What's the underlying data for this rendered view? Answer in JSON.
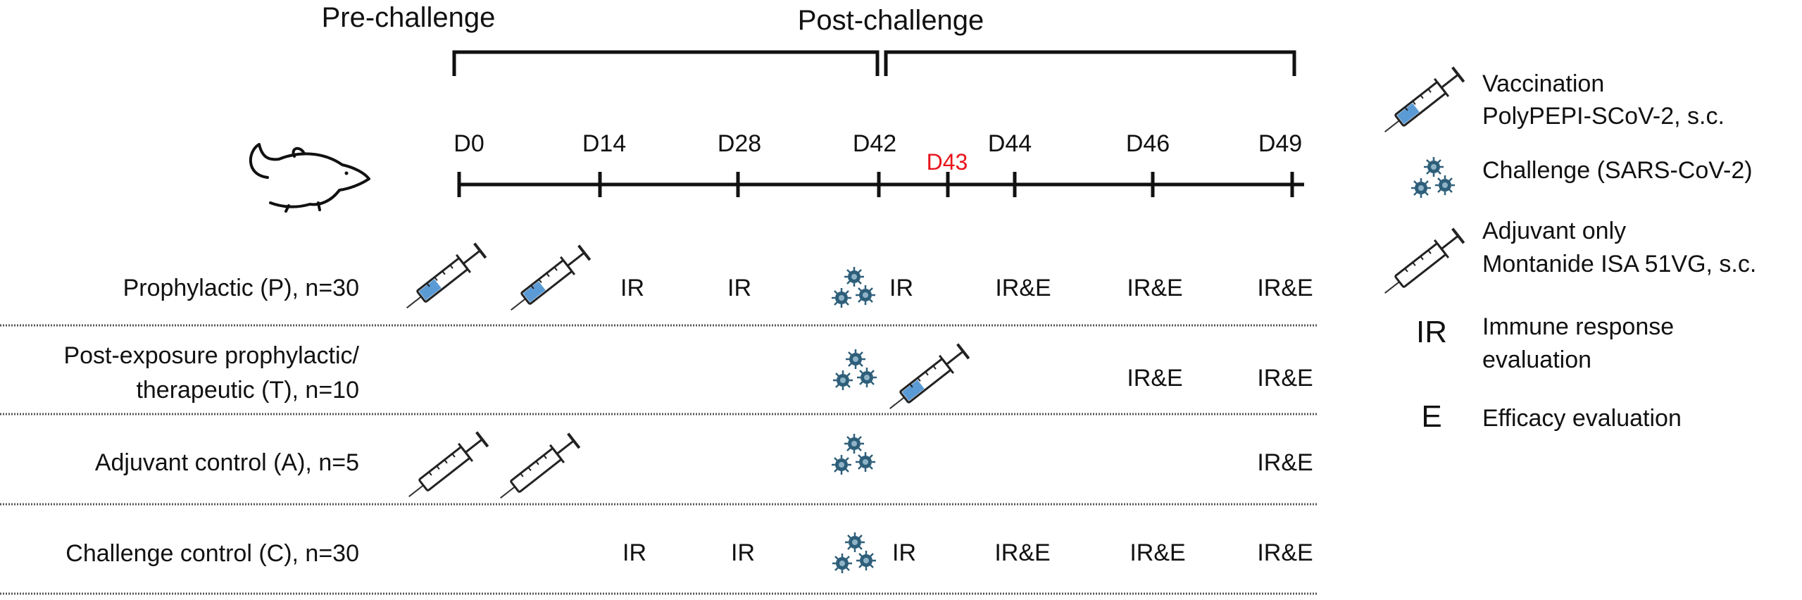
{
  "phases": {
    "pre": "Pre-challenge",
    "post": "Post-challenge"
  },
  "timeline": {
    "days": [
      "D0",
      "D14",
      "D28",
      "D42",
      "D44",
      "D46",
      "D49"
    ],
    "challenge_day": "D43"
  },
  "groups": [
    {
      "label_lines": [
        "Prophylactic (P), n=30"
      ]
    },
    {
      "label_lines": [
        "Post-exposure prophylactic/",
        "therapeutic (T), n=10"
      ]
    },
    {
      "label_lines": [
        "Adjuvant control (A), n=5"
      ]
    },
    {
      "label_lines": [
        "Challenge control (C), n=30"
      ]
    }
  ],
  "schedule": {
    "group_p": [
      "IR",
      "IR",
      "IR",
      "IR&E",
      "IR&E",
      "IR&E"
    ],
    "group_t": [
      "IR&E",
      "IR&E"
    ],
    "group_a": [
      "IR&E"
    ],
    "group_c": [
      "IR",
      "IR",
      "IR",
      "IR&E",
      "IR&E",
      "IR&E"
    ]
  },
  "legend": {
    "vaccination": [
      "Vaccination",
      "PolyPEPI-SCoV-2, s.c."
    ],
    "challenge": [
      "Challenge (SARS-CoV-2)"
    ],
    "adjuvant": [
      "Adjuvant only",
      "Montanide ISA 51VG, s.c."
    ],
    "ir_symbol": "IR",
    "ir_text": [
      "Immune response",
      "evaluation"
    ],
    "e_symbol": "E",
    "e_text": [
      "Efficacy evaluation"
    ]
  },
  "colors": {
    "vaccine_fill": "#5b9bd5",
    "virus": "#2e5f7a",
    "challenge_day": "#e8141b",
    "text": "#111111"
  }
}
